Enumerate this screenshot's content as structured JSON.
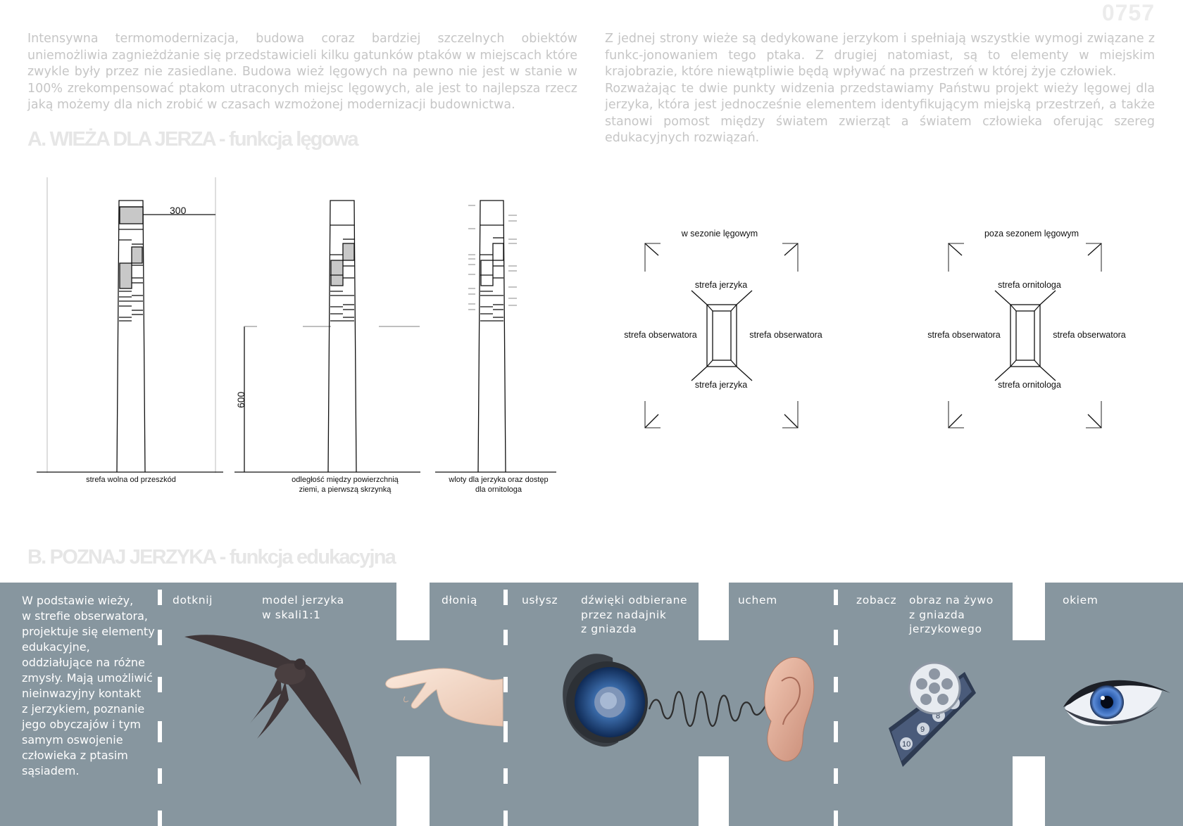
{
  "page_number": "0757",
  "intro_left": "Intensywna termomodernizacja, budowa coraz bardziej szczelnych obiektów uniemożliwia zagnieżdżanie się przedstawicieli kilku gatunków ptaków w miejscach które zwykle były przez nie zasiedlane. Budowa wież lęgowych na pewno nie jest w stanie w 100% zrekompensować ptakom utraconych miejsc lęgowych, ale jest to najlepsza rzecz jaką możemy dla nich zrobić w czasach wzmożonej modernizacji budownictwa.",
  "intro_right_1": "Z jednej strony wieże są dedykowane jerzykom i spełniają wszystkie wymogi związane z funkc-jonowaniem tego ptaka. Z drugiej natomiast, są to elementy w miejskim krajobrazie, które niewątpliwie będą wpływać na przestrzeń w której żyje człowiek.",
  "intro_right_2": "Rozważając te dwie punkty widzenia przedstawiamy Państwu projekt wieży lęgowej dla jerzyka, która jest jednocześnie elementem identyfikującym miejską przestrzeń, a także stanowi pomost między światem zwierząt a światem człowieka oferując szereg edukacyjnych rozwiązań.",
  "section_a_title": "A. WIEŻA DLA JERZA - funkcja lęgowa",
  "section_b_title": "B. POZNAJ JERZYKA - funkcja edukacyjna",
  "towers": {
    "dim_300": "300",
    "dim_600": "600",
    "caption_1": "strefa wolna od przeszkód",
    "caption_2_line1": "odległość między powierzchnią",
    "caption_2_line2": "ziemi, a pierwszą skrzynką",
    "caption_3_line1": "wloty dla jerzyka oraz dostęp",
    "caption_3_line2": "dla ornitologa"
  },
  "zones_season": {
    "title": "w sezonie lęgowym",
    "top": "strefa jerzyka",
    "bottom": "strefa jerzyka",
    "left": "strefa obserwatora",
    "right": "strefa obserwatora"
  },
  "zones_off_season": {
    "title": "poza sezonem lęgowym",
    "top": "strefa ornitologa",
    "bottom": "strefa ornitologa",
    "left": "strefa obserwatora",
    "right": "strefa obserwatora"
  },
  "education": {
    "intro_lines": [
      "W podstawie wieży,",
      "w strefie obserwatora,",
      "projektuje się elementy",
      "edukacyjne,",
      "oddziałujące na różne",
      "zmysły. Mają umożliwić",
      "nieinwazyjny kontakt",
      "z jerzykiem, poznanie",
      "jego obyczajów i tym",
      "samym oswojenie",
      "człowieka z ptasim",
      "sąsiadem."
    ],
    "touch_verb": "dotknij",
    "touch_object_lines": [
      "model jerzyka",
      "w skali1:1"
    ],
    "touch_organ": "dłonią",
    "hear_verb": "usłysz",
    "hear_object_lines": [
      "dźwięki odbierane",
      "przez nadajnik",
      "z gniazda"
    ],
    "hear_organ": "uchem",
    "see_verb": "zobacz",
    "see_object_lines": [
      "obraz na żywo",
      "z gniazda",
      "jerzykowego"
    ],
    "see_organ": "okiem",
    "reel_numbers": [
      "10",
      "9",
      "8",
      "7"
    ]
  },
  "colors": {
    "band": "#87969f",
    "tower_fill": "#c8c8c8",
    "heading_ghost": "#e6e6e6"
  }
}
